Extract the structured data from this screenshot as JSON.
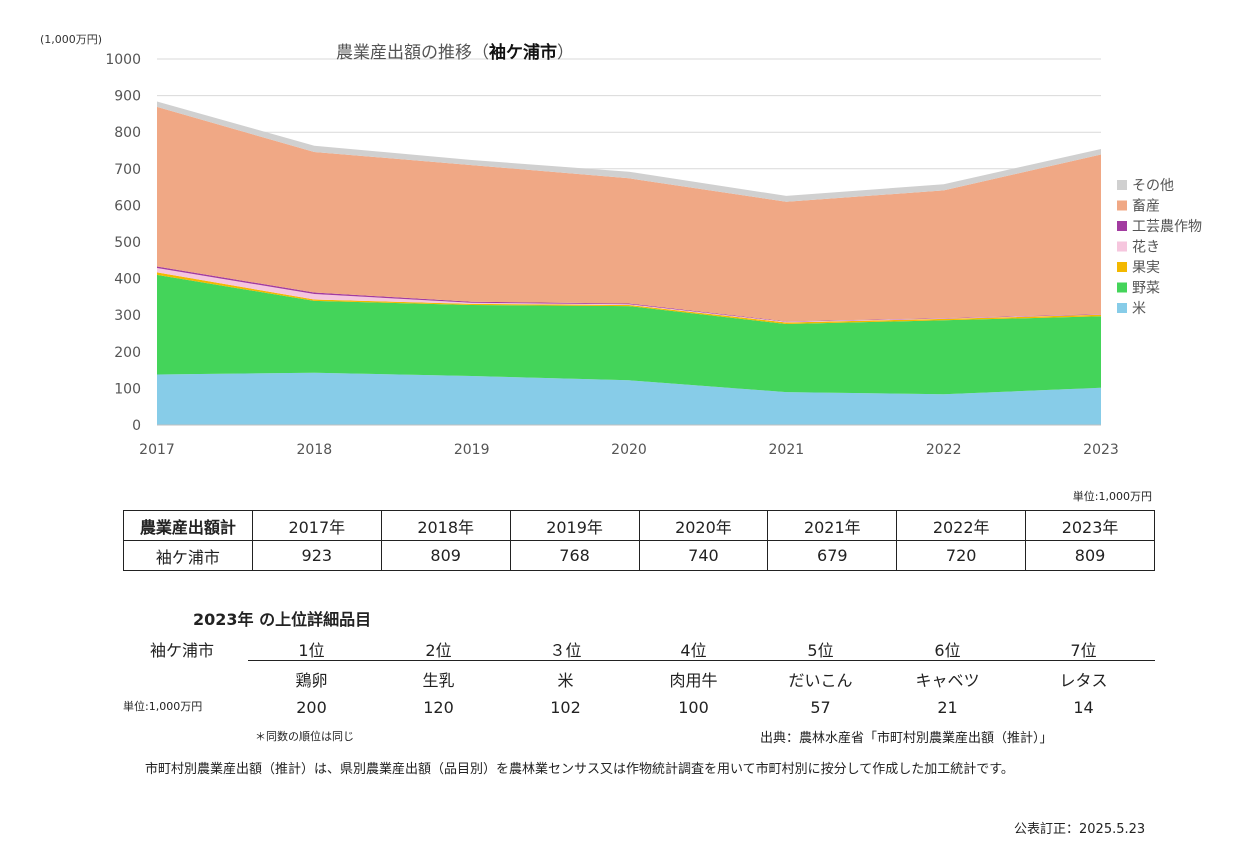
{
  "chart_data": {
    "type": "area",
    "title_prefix": "農業産出額の推移（",
    "title_city": "袖ケ浦市",
    "title_suffix": "）",
    "unit_label": "(1,000万円)",
    "x": [
      "2017",
      "2018",
      "2019",
      "2020",
      "2021",
      "2022",
      "2023"
    ],
    "ylim": [
      0,
      1000
    ],
    "yticks": [
      "0",
      "100",
      "200",
      "300",
      "400",
      "500",
      "600",
      "700",
      "800",
      "900",
      "1000"
    ],
    "grid": true,
    "stacked": true,
    "legend_position": "right",
    "series": [
      {
        "name": "米",
        "color": "#87cce8",
        "values": [
          138,
          143,
          134,
          122,
          90,
          84,
          102
        ]
      },
      {
        "name": "野菜",
        "color": "#44d45a",
        "values": [
          272,
          196,
          194,
          203,
          186,
          202,
          195
        ]
      },
      {
        "name": "果実",
        "color": "#f3b800",
        "values": [
          7,
          4,
          3,
          3,
          4,
          4,
          4
        ]
      },
      {
        "name": "花き",
        "color": "#f6c6de",
        "values": [
          12,
          15,
          3,
          2,
          2,
          1,
          1
        ]
      },
      {
        "name": "工芸農作物",
        "color": "#a23ba0",
        "values": [
          4,
          4,
          3,
          2,
          1,
          1,
          1
        ]
      },
      {
        "name": "畜産",
        "color": "#f0a885",
        "values": [
          436,
          384,
          373,
          342,
          327,
          349,
          436
        ]
      },
      {
        "name": "その他",
        "color": "#d0d0d0",
        "values": [
          15,
          17,
          14,
          18,
          16,
          17,
          15
        ]
      }
    ]
  },
  "totals_table": {
    "unit": "単位:1,000万円",
    "header": "農業産出額計",
    "years": [
      "2017年",
      "2018年",
      "2019年",
      "2020年",
      "2021年",
      "2022年",
      "2023年"
    ],
    "row_label": "袖ケ浦市",
    "values": [
      "923",
      "809",
      "768",
      "740",
      "679",
      "720",
      "809"
    ]
  },
  "ranking": {
    "title": "2023年 の上位詳細品目",
    "city": "袖ケ浦市",
    "unit": "単位:1,000万円",
    "ranks": [
      "1位",
      "2位",
      "３位",
      "4位",
      "5位",
      "6位",
      "7位"
    ],
    "items": [
      "鶏卵",
      "生乳",
      "米",
      "肉用牛",
      "だいこん",
      "キャベツ",
      "レタス"
    ],
    "values": [
      "200",
      "120",
      "102",
      "100",
      "57",
      "21",
      "14"
    ]
  },
  "notes": {
    "same_rank": "＊同数の順位は同じ",
    "source": "出典：農林水産省「市町村別農業産出額（推計）」",
    "description": "市町村別農業産出額（推計）は、県別農業産出額（品目別）を農林業センサス又は作物統計調査を用いて市町村別に按分して作成した加工統計です。",
    "published": "公表訂正：2025.5.23"
  }
}
